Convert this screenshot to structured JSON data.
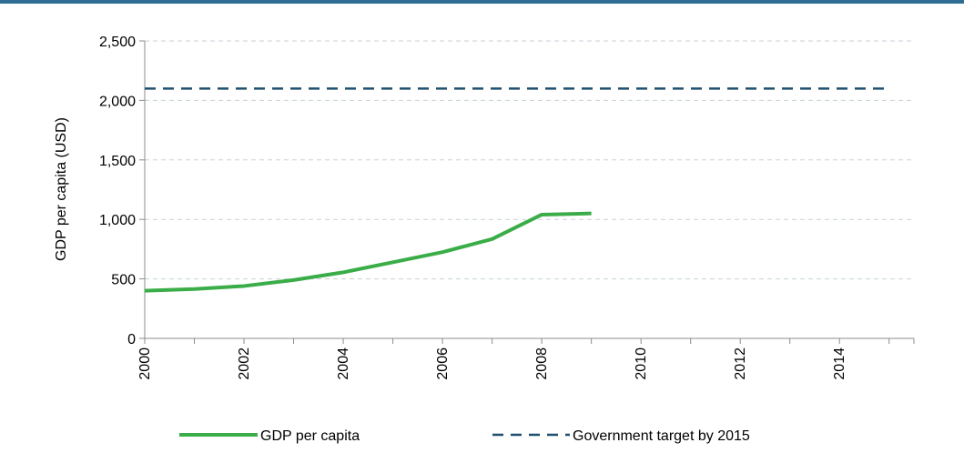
{
  "colors": {
    "top_rule": "#2f6d94",
    "gdp_line": "#3aad48",
    "target_line": "#1f4e6e",
    "grid": "#c8d2d8",
    "axis": "#8c8c8c"
  },
  "chart_data": {
    "type": "line",
    "ylabel": "GDP per capita (USD)",
    "xlabel": "",
    "ylim": [
      0,
      2500
    ],
    "xlim": [
      2000,
      2015.5
    ],
    "y_ticks": [
      "0",
      "500",
      "1,000",
      "1,500",
      "2,000",
      "2,500"
    ],
    "x_ticks": [
      "2000",
      "2002",
      "2004",
      "2006",
      "2008",
      "2010",
      "2012",
      "2014"
    ],
    "grid": true,
    "legend_position": "bottom",
    "series": [
      {
        "name": "GDP per capita",
        "style": "solid",
        "x": [
          2000,
          2001,
          2002,
          2003,
          2004,
          2005,
          2006,
          2007,
          2008,
          2009
        ],
        "y": [
          400,
          415,
          440,
          490,
          555,
          640,
          725,
          835,
          1040,
          1050
        ]
      },
      {
        "name": "Government target by 2015",
        "style": "dashed",
        "x": [
          2000,
          2015
        ],
        "y": [
          2100,
          2100
        ]
      }
    ]
  }
}
